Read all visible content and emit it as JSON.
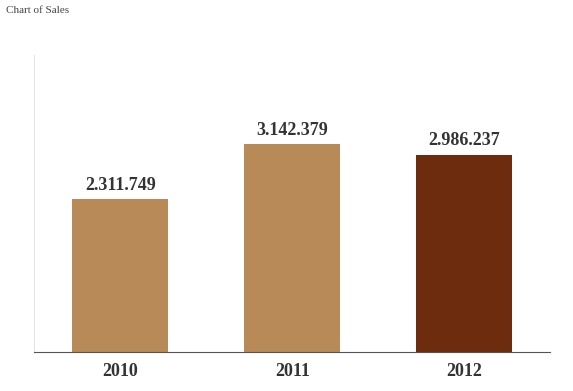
{
  "chart_data": {
    "type": "bar",
    "title": "Chart of Sales",
    "categories": [
      "2010",
      "2011",
      "2012"
    ],
    "values": [
      2311749,
      3142379,
      2986237
    ],
    "value_labels": [
      "2.311.749",
      "3.142.379",
      "2.986.237"
    ],
    "colors": [
      "#b88a58",
      "#b88a58",
      "#6e2c0e"
    ],
    "ylim": [
      0,
      4500000
    ],
    "yticks": [
      0
    ],
    "data_labels": true,
    "tick_labels": "x",
    "grid": false
  }
}
